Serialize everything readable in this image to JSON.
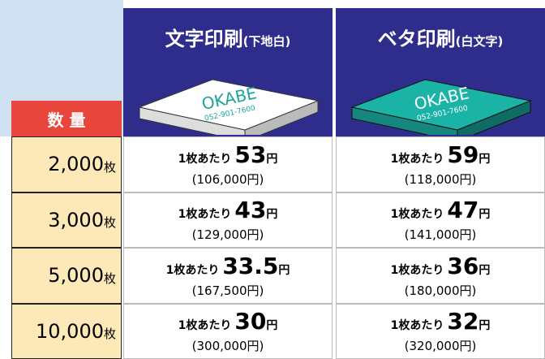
{
  "header": {
    "quantity_label": "数 量",
    "columns": [
      {
        "title": "文字印刷",
        "note": "(下地白)"
      },
      {
        "title": "ベタ印刷",
        "note": "(白文字)"
      }
    ],
    "sample": {
      "brand": "OKABE",
      "phone": "052-901-7600"
    }
  },
  "table": {
    "unit": "枚",
    "per_unit": "1枚あたり",
    "yen": "円",
    "rows": [
      {
        "quantity": "2,000",
        "prices": [
          {
            "unit_price": "53",
            "total": "(106,000円)"
          },
          {
            "unit_price": "59",
            "total": "(118,000円)"
          }
        ]
      },
      {
        "quantity": "3,000",
        "prices": [
          {
            "unit_price": "43",
            "total": "(129,000円)"
          },
          {
            "unit_price": "47",
            "total": "(141,000円)"
          }
        ]
      },
      {
        "quantity": "5,000",
        "prices": [
          {
            "unit_price": "33.5",
            "total": "(167,500円)"
          },
          {
            "unit_price": "36",
            "total": "(180,000円)"
          }
        ]
      },
      {
        "quantity": "10,000",
        "prices": [
          {
            "unit_price": "30",
            "total": "(300,000円)"
          },
          {
            "unit_price": "32",
            "total": "(320,000円)"
          }
        ]
      }
    ]
  }
}
